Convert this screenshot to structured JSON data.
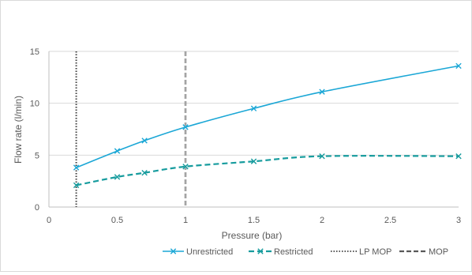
{
  "chart_data": {
    "type": "line",
    "title": "",
    "xlabel": "Pressure (bar)",
    "ylabel": "Flow rate (l/min)",
    "xlim": [
      0,
      3
    ],
    "ylim": [
      0,
      15
    ],
    "x_ticks": [
      "0",
      "0.5",
      "1",
      "1.5",
      "2",
      "2.5",
      "3"
    ],
    "y_ticks": [
      "0",
      "5",
      "10",
      "15"
    ],
    "grid": "horizontal",
    "legend_position": "bottom-right",
    "series": [
      {
        "name": "Unrestricted",
        "style": "solid",
        "color": "#1ba7d6",
        "x": [
          0.2,
          0.5,
          0.7,
          1.0,
          1.5,
          2.0,
          3.0
        ],
        "y": [
          3.8,
          5.4,
          6.4,
          7.7,
          9.5,
          11.1,
          13.6
        ]
      },
      {
        "name": "Restricted",
        "style": "dashed",
        "color": "#179c9e",
        "x": [
          0.2,
          0.5,
          0.7,
          1.0,
          1.5,
          2.0,
          3.0
        ],
        "y": [
          2.1,
          2.9,
          3.3,
          3.9,
          4.4,
          4.9,
          4.9
        ]
      },
      {
        "name": "LP MOP",
        "style": "dotted",
        "color": "#404040",
        "vertical_at": 0.2
      },
      {
        "name": "MOP",
        "style": "long-dash",
        "color": "#595959",
        "vertical_at": 1.0
      }
    ]
  }
}
